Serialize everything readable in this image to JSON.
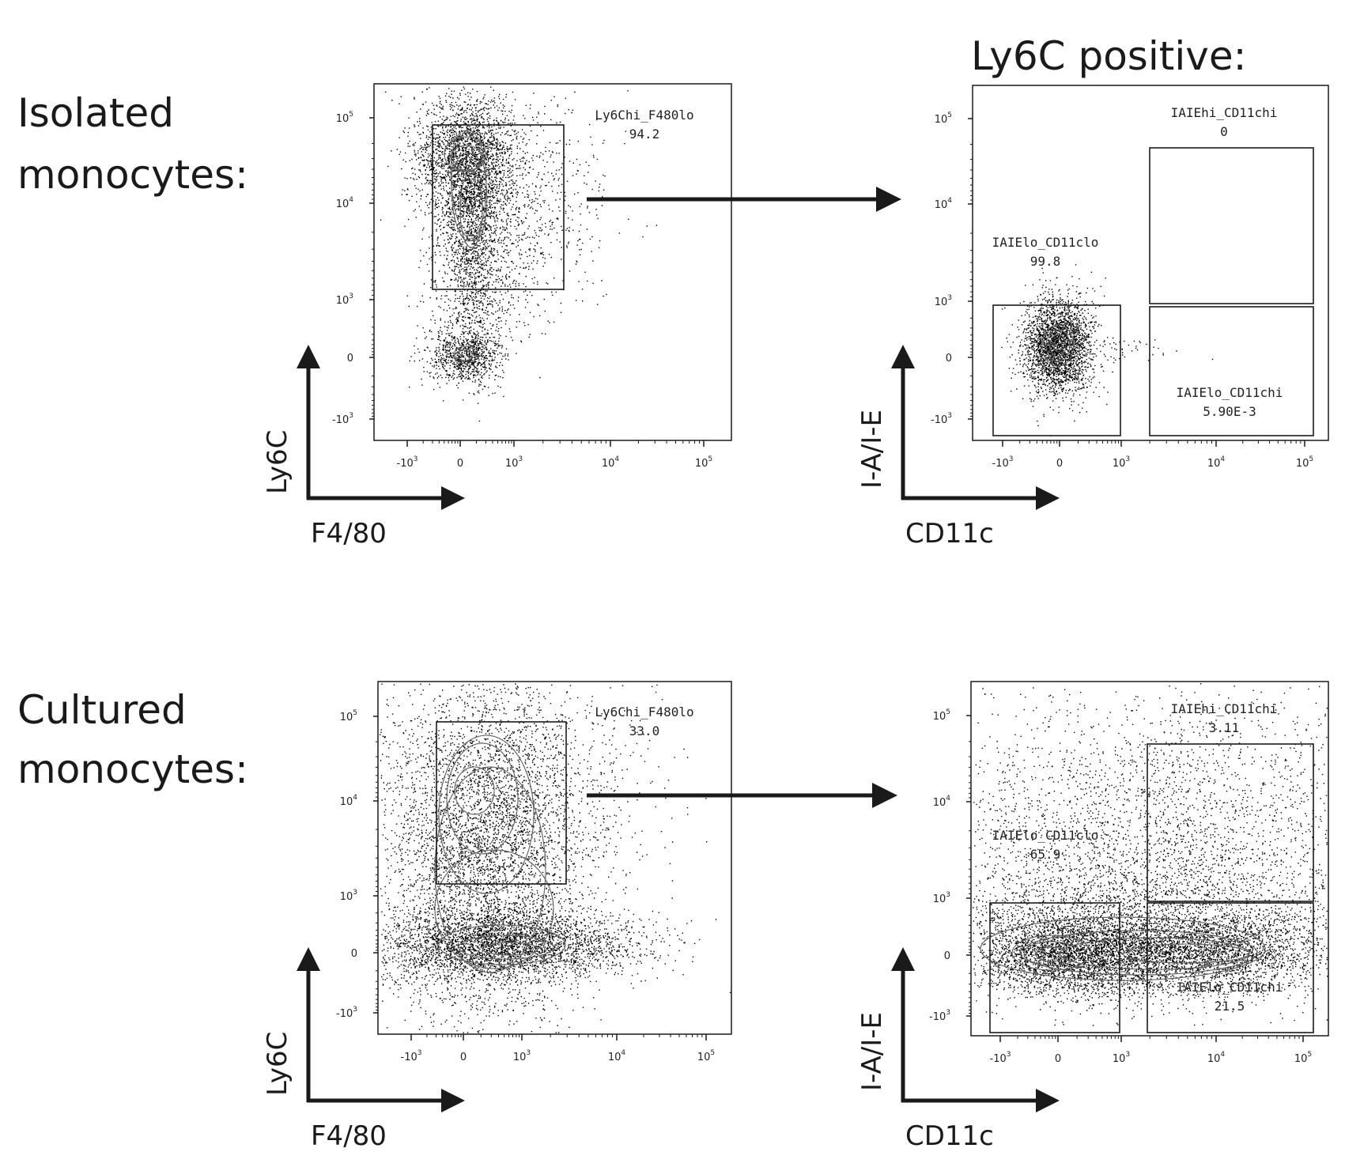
{
  "rows": {
    "isolated": {
      "label_line1": "Isolated",
      "label_line2": "monocytes:"
    },
    "cultured": {
      "label_line1": "Cultured",
      "label_line2": "monocytes:"
    }
  },
  "column_header": "Ly6C positive:",
  "axis_arrows": {
    "left": {
      "y": "Ly6C",
      "x": "F4/80"
    },
    "right": {
      "y": "I-A/I-E",
      "x": "CD11c"
    }
  },
  "tick_labels": {
    "base": [
      "10",
      "10",
      "10",
      "10"
    ],
    "left_x": [
      {
        "base": "-10",
        "exp": "3"
      },
      {
        "base": "0",
        "exp": ""
      },
      {
        "base": "10",
        "exp": "3"
      },
      {
        "base": "10",
        "exp": "4"
      },
      {
        "base": "10",
        "exp": "5"
      }
    ],
    "y": [
      {
        "base": "10",
        "exp": "5"
      },
      {
        "base": "10",
        "exp": "4"
      },
      {
        "base": "10",
        "exp": "3"
      },
      {
        "base": "0",
        "exp": ""
      },
      {
        "base": "-10",
        "exp": "3"
      }
    ]
  },
  "chart_data": [
    {
      "type": "scatter",
      "panel": "isolated-ly6c-vs-f480",
      "xlabel": "F4/80",
      "ylabel": "Ly6C",
      "x_scale": "biexponential",
      "y_scale": "biexponential",
      "gates": [
        {
          "name": "Ly6Chi_F480lo",
          "percent": "94.2"
        }
      ]
    },
    {
      "type": "scatter",
      "panel": "isolated-iaie-vs-cd11c",
      "title": "Ly6C positive:",
      "xlabel": "CD11c",
      "ylabel": "I-A/I-E",
      "x_scale": "biexponential",
      "y_scale": "biexponential",
      "gates": [
        {
          "name": "IAIEhi_CD11chi",
          "percent": "0"
        },
        {
          "name": "IAIElo_CD11clo",
          "percent": "99.8"
        },
        {
          "name": "IAIElo_CD11chi",
          "percent": "5.90E-3"
        }
      ]
    },
    {
      "type": "scatter",
      "panel": "cultured-ly6c-vs-f480",
      "xlabel": "F4/80",
      "ylabel": "Ly6C",
      "x_scale": "biexponential",
      "y_scale": "biexponential",
      "gates": [
        {
          "name": "Ly6Chi_F480lo",
          "percent": "33.0"
        }
      ]
    },
    {
      "type": "scatter",
      "panel": "cultured-iaie-vs-cd11c",
      "xlabel": "CD11c",
      "ylabel": "I-A/I-E",
      "x_scale": "biexponential",
      "y_scale": "biexponential",
      "gates": [
        {
          "name": "IAIEhi_CD11chi",
          "percent": "3.11"
        },
        {
          "name": "IAIElo_CD11clo",
          "percent": "65.9"
        },
        {
          "name": "IAIElo_CD11chi",
          "percent": "21.5"
        }
      ]
    }
  ]
}
